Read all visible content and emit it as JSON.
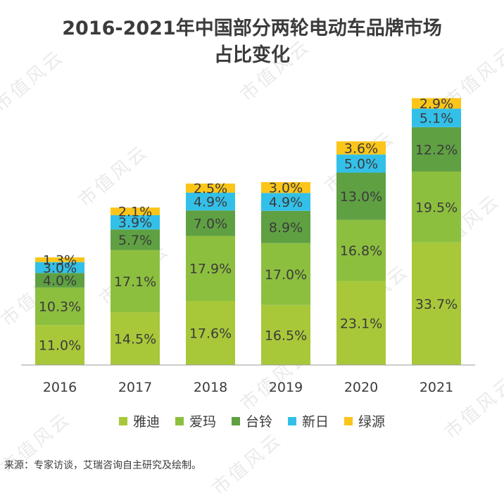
{
  "title_lines": [
    "2016-2021年中国部分两轮电动车品牌市场",
    "占比变化"
  ],
  "source": "来源：专家访谈，艾瑞咨询自主研究及绘制。",
  "watermark": "市值风云",
  "chart_data": {
    "type": "bar",
    "stacked": true,
    "categories": [
      "2016",
      "2017",
      "2018",
      "2019",
      "2020",
      "2021"
    ],
    "series": [
      {
        "name": "雅迪",
        "color": "#a8c83a",
        "values": [
          11.0,
          14.5,
          17.6,
          16.5,
          23.1,
          33.7
        ]
      },
      {
        "name": "爱玛",
        "color": "#8dbf3f",
        "values": [
          10.3,
          17.1,
          17.9,
          17.0,
          16.8,
          19.5
        ]
      },
      {
        "name": "台铃",
        "color": "#5fa043",
        "values": [
          4.0,
          5.7,
          7.0,
          8.9,
          13.0,
          12.2
        ]
      },
      {
        "name": "新日",
        "color": "#33c0e8",
        "values": [
          3.0,
          3.9,
          4.9,
          4.9,
          5.0,
          5.1
        ]
      },
      {
        "name": "绿源",
        "color": "#fbc51a",
        "values": [
          1.3,
          2.1,
          2.5,
          3.0,
          3.6,
          2.9
        ]
      }
    ],
    "value_suffix": "%",
    "legend_position": "bottom",
    "grid": false
  }
}
